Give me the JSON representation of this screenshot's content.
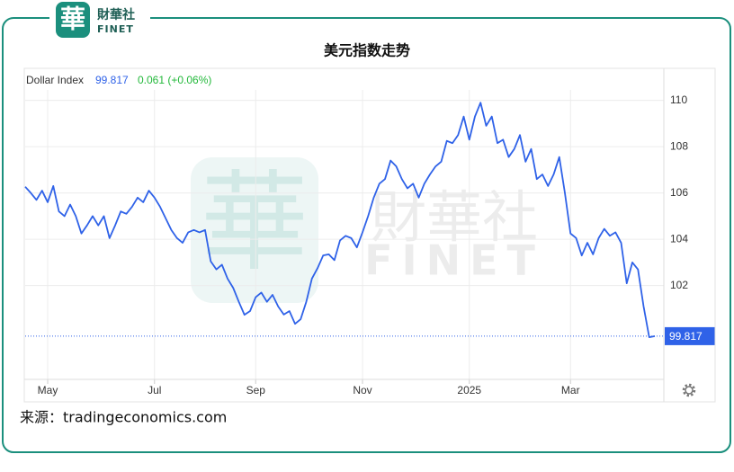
{
  "branding": {
    "logo_char": "華",
    "logo_name": "財華社",
    "logo_en": "FINET"
  },
  "source": "来源：tradingeconomics.com",
  "chart_data": {
    "type": "line",
    "title": "美元指数走势",
    "change": "0.061 (+0.06%)",
    "categories": [
      null,
      null,
      null,
      null,
      "May",
      null,
      null,
      null,
      null,
      null,
      null,
      null,
      null,
      null,
      null,
      null,
      null,
      null,
      null,
      null,
      null,
      null,
      null,
      "Jul",
      null,
      null,
      null,
      null,
      null,
      null,
      null,
      null,
      null,
      null,
      null,
      null,
      null,
      null,
      null,
      null,
      null,
      "Sep",
      null,
      null,
      null,
      null,
      null,
      null,
      null,
      null,
      null,
      null,
      null,
      null,
      null,
      null,
      null,
      null,
      null,
      null,
      "Nov",
      null,
      null,
      null,
      null,
      null,
      null,
      null,
      null,
      null,
      null,
      null,
      null,
      null,
      null,
      null,
      null,
      null,
      null,
      "2025",
      null,
      null,
      null,
      null,
      null,
      null,
      null,
      null,
      null,
      null,
      null,
      null,
      null,
      null,
      null,
      null,
      null,
      "Mar",
      null,
      null,
      null,
      null,
      null,
      null,
      null,
      null,
      null,
      null,
      null,
      null,
      null,
      null,
      null
    ],
    "series": [
      {
        "name": "Dollar Index",
        "color": "#2f62e8",
        "values": [
          106.27,
          106.0,
          105.7,
          106.1,
          105.6,
          106.3,
          105.2,
          105.0,
          105.5,
          105.0,
          104.25,
          104.6,
          105.0,
          104.6,
          105.0,
          104.05,
          104.6,
          105.2,
          105.1,
          105.4,
          105.8,
          105.6,
          106.1,
          105.8,
          105.4,
          104.9,
          104.4,
          104.05,
          103.85,
          104.3,
          104.4,
          104.3,
          104.4,
          103.05,
          102.7,
          102.9,
          102.3,
          101.9,
          101.3,
          100.74,
          100.9,
          101.5,
          101.7,
          101.3,
          101.6,
          101.1,
          100.75,
          100.9,
          100.35,
          100.55,
          101.3,
          102.3,
          102.75,
          103.3,
          103.35,
          103.1,
          103.95,
          104.15,
          104.05,
          103.65,
          104.3,
          105.0,
          105.8,
          106.4,
          106.6,
          107.4,
          107.15,
          106.6,
          106.2,
          106.4,
          105.8,
          106.4,
          106.8,
          107.15,
          107.35,
          108.25,
          108.15,
          108.5,
          109.3,
          108.3,
          109.3,
          109.9,
          108.9,
          109.3,
          108.15,
          108.3,
          107.55,
          107.9,
          108.5,
          107.35,
          107.9,
          106.6,
          106.8,
          106.3,
          106.8,
          107.55,
          106.0,
          104.25,
          104.05,
          103.3,
          103.85,
          103.35,
          104.05,
          104.45,
          104.15,
          104.3,
          103.85,
          102.1,
          103.0,
          102.7,
          101.1,
          99.77,
          99.817
        ]
      }
    ],
    "ylim": [
      97.95,
      110.45
    ],
    "yticks": [
      102,
      104,
      106,
      108,
      110
    ],
    "grid": true
  }
}
